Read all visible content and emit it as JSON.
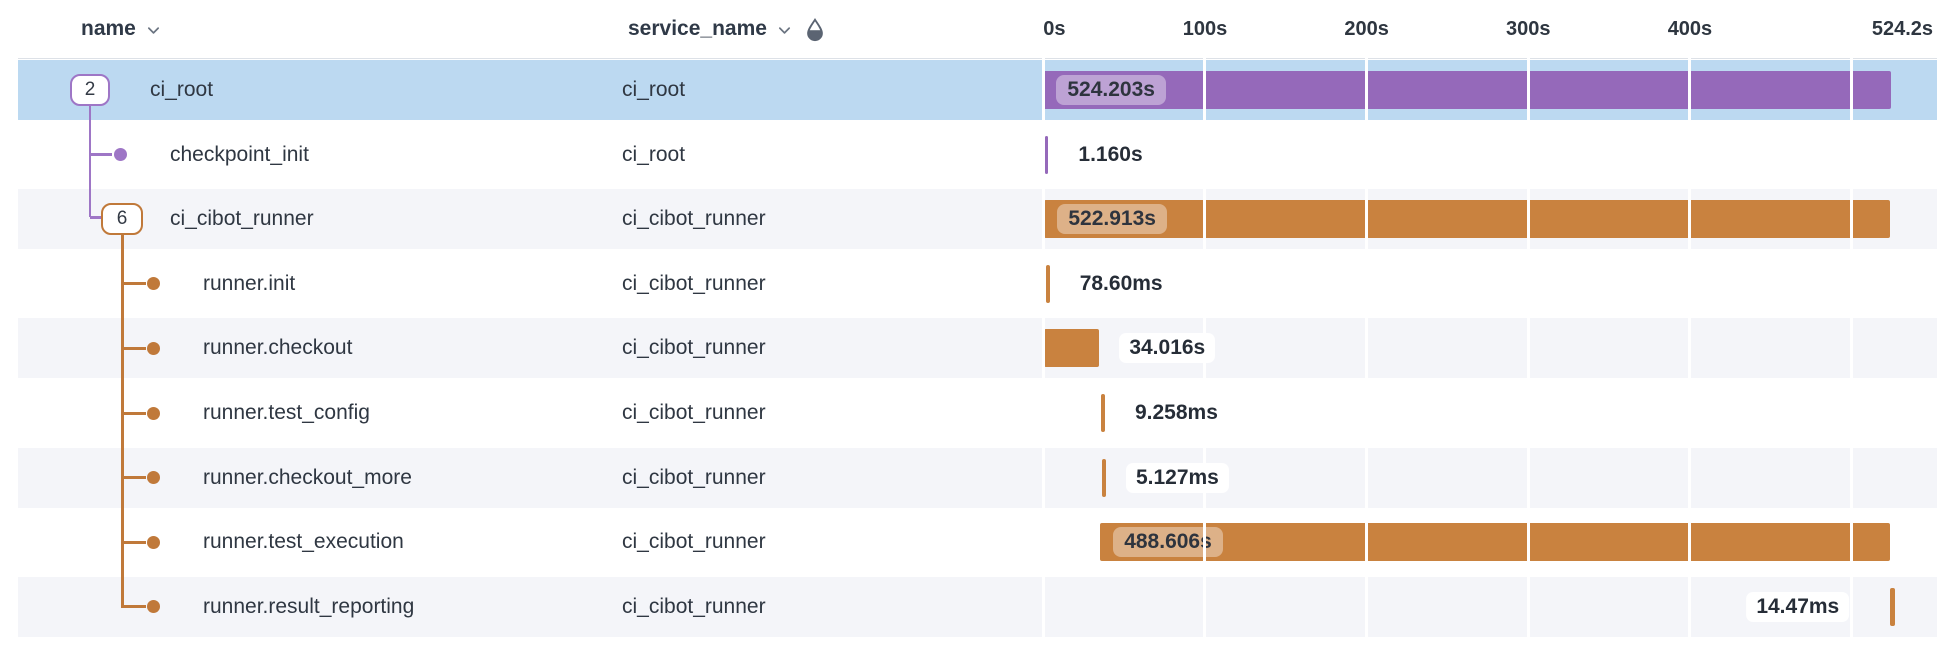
{
  "header": {
    "name_col": "name",
    "service_col": "service_name",
    "ticks": [
      {
        "label": "0s",
        "t": 0
      },
      {
        "label": "100s",
        "t": 100
      },
      {
        "label": "200s",
        "t": 200
      },
      {
        "label": "300s",
        "t": 300
      },
      {
        "label": "400s",
        "t": 400
      },
      {
        "label": "524.2s",
        "t": 524.2
      }
    ]
  },
  "colors": {
    "purple": "#9569BA",
    "purple_connector": "#9E76C6",
    "orange": "#C9823F",
    "orange_connector": "#C0793A",
    "selected_row_bg": "#BCD9F1",
    "alt_row_bg": "#F4F5F9",
    "gridline": "#FFFFFF",
    "text_dark": "#2F3742"
  },
  "rows": [
    {
      "name": "ci_root",
      "service": "ci_root",
      "badge_count": "2",
      "color": "purple",
      "selected": true,
      "duration_label": "524.203s",
      "label_pos": "inside",
      "start_s": 0.05,
      "duration_s": 524.203
    },
    {
      "name": "checkpoint_init",
      "service": "ci_root",
      "badge_count": "",
      "color": "purple",
      "selected": false,
      "duration_label": "1.160s",
      "label_pos": "right",
      "start_s": 1.0,
      "duration_s": 1.16
    },
    {
      "name": "ci_cibot_runner",
      "service": "ci_cibot_runner",
      "badge_count": "6",
      "color": "orange",
      "selected": false,
      "duration_label": "522.913s",
      "label_pos": "inside",
      "start_s": 0.65,
      "duration_s": 522.913
    },
    {
      "name": "runner.init",
      "service": "ci_cibot_runner",
      "badge_count": "",
      "color": "orange",
      "selected": false,
      "duration_label": "78.60ms",
      "label_pos": "right",
      "start_s": 1.8,
      "duration_s": 0.0786
    },
    {
      "name": "runner.checkout",
      "service": "ci_cibot_runner",
      "badge_count": "",
      "color": "orange",
      "selected": false,
      "duration_label": "34.016s",
      "label_pos": "right",
      "start_s": 0.65,
      "duration_s": 34.016
    },
    {
      "name": "runner.test_config",
      "service": "ci_cibot_runner",
      "badge_count": "",
      "color": "orange",
      "selected": false,
      "duration_label": "9.258ms",
      "label_pos": "right",
      "start_s": 36.0,
      "duration_s": 0.009258
    },
    {
      "name": "runner.checkout_more",
      "service": "ci_cibot_runner",
      "badge_count": "",
      "color": "orange",
      "selected": false,
      "duration_label": "5.127ms",
      "label_pos": "right",
      "start_s": 36.6,
      "duration_s": 0.005127
    },
    {
      "name": "runner.test_execution",
      "service": "ci_cibot_runner",
      "badge_count": "",
      "color": "orange",
      "selected": false,
      "duration_label": "488.606s",
      "label_pos": "inside",
      "start_s": 35.2,
      "duration_s": 488.606
    },
    {
      "name": "runner.result_reporting",
      "service": "ci_cibot_runner",
      "badge_count": "",
      "color": "orange",
      "selected": false,
      "duration_label": "14.47ms",
      "label_pos": "left",
      "start_s": 523.9,
      "duration_s": 0.01447
    }
  ]
}
